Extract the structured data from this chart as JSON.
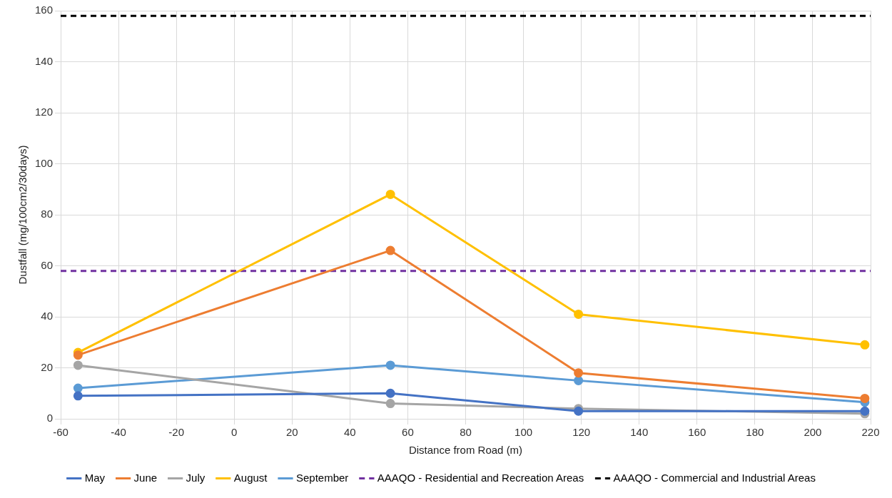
{
  "chart_data": {
    "type": "line",
    "xlabel": "Distance from Road (m)",
    "ylabel": "Dustfall (mg/100cm2/30days)",
    "x": [
      -54,
      54,
      119,
      218
    ],
    "series": [
      {
        "name": "May",
        "color": "#4472c4",
        "values": [
          9,
          10,
          3,
          3
        ]
      },
      {
        "name": "June",
        "color": "#ed7d31",
        "values": [
          25,
          66,
          18,
          8
        ]
      },
      {
        "name": "July",
        "color": "#a5a5a5",
        "values": [
          21,
          6,
          4,
          2
        ]
      },
      {
        "name": "August",
        "color": "#ffc000",
        "values": [
          26,
          88,
          41,
          29
        ]
      },
      {
        "name": "September",
        "color": "#5b9bd5",
        "values": [
          12,
          21,
          15,
          6.5
        ]
      }
    ],
    "ref_lines": [
      {
        "axis": "y",
        "value": 58,
        "label": "AAAQO - Residential and Recreation Areas",
        "color": "#7030a0",
        "line_style": "dashed"
      },
      {
        "axis": "y",
        "value": 158,
        "label": "AAAQO - Commercial and Industrial Areas",
        "color": "#000000",
        "line_style": "dashed"
      }
    ],
    "xlim": [
      -60,
      220
    ],
    "xticks": [
      -60,
      -40,
      -20,
      0,
      20,
      40,
      60,
      80,
      100,
      120,
      140,
      160,
      180,
      200,
      220
    ],
    "ylim": [
      0,
      160
    ],
    "yticks": [
      0,
      20,
      40,
      60,
      80,
      100,
      120,
      140,
      160
    ],
    "grid": true,
    "legend": "bottom",
    "marker": "circle",
    "line_style": "solid"
  }
}
